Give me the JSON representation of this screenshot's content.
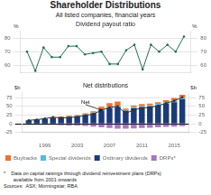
{
  "title": "Shareholder Distributions",
  "subtitle": "All listed companies, financial years",
  "annotations": [
    "*    Data on capital raisings through dividend reinvestment plans (DRPs)\n       available from 2001 onwards",
    "Sources:  ASX; Morningstar; RBA"
  ],
  "chart_data": [
    {
      "type": "line",
      "title": "Dividend payout ratio",
      "x": [
        1997,
        1998,
        1999,
        2000,
        2001,
        2002,
        2003,
        2004,
        2005,
        2006,
        2007,
        2008,
        2009,
        2010,
        2011,
        2012,
        2013,
        2014,
        2015,
        2016
      ],
      "values": [
        70,
        56,
        73,
        66,
        66,
        74,
        74,
        68,
        69,
        70,
        61,
        61,
        71,
        75,
        57,
        75,
        70,
        75,
        70,
        81
      ],
      "color": "#207050",
      "marker": "circle",
      "xlim": [
        1996.2,
        2016.8
      ],
      "ylim": [
        55,
        85
      ],
      "yticks": [
        60,
        70,
        80
      ],
      "y2lim": [
        55,
        85
      ],
      "y2ticks": [
        60,
        70,
        80
      ],
      "ylabel": "%",
      "y2label": "%",
      "grid": true,
      "tick_labels": "y"
    },
    {
      "type": "bar",
      "title": "Net distributions",
      "x": [
        1997,
        1998,
        1999,
        2000,
        2001,
        2002,
        2003,
        2004,
        2005,
        2006,
        2007,
        2008,
        2009,
        2010,
        2011,
        2012,
        2013,
        2014,
        2015,
        2016
      ],
      "series": [
        {
          "name": "Ordinary dividends",
          "color": "#1a3a7a",
          "values": [
            10,
            12,
            14,
            17,
            18,
            20,
            22,
            25,
            30,
            38,
            45,
            48,
            38,
            45,
            48,
            50,
            53,
            58,
            62,
            70
          ]
        },
        {
          "name": "Special dividends",
          "color": "#55bbdd",
          "values": [
            0,
            0,
            0,
            0,
            0,
            1,
            1,
            2,
            2,
            3,
            4,
            4,
            2,
            3,
            3,
            3,
            4,
            4,
            5,
            5
          ]
        },
        {
          "name": "Buybacks",
          "color": "#f07030",
          "values": [
            0,
            0,
            1,
            2,
            3,
            2,
            2,
            3,
            4,
            8,
            10,
            12,
            4,
            5,
            6,
            5,
            5,
            6,
            7,
            8
          ]
        },
        {
          "name": "DRPs*",
          "color": "#aa77bb",
          "values": [
            0,
            0,
            0,
            0,
            -4,
            -5,
            -5,
            -6,
            -8,
            -10,
            -12,
            -14,
            -14,
            -13,
            -12,
            -11,
            -10,
            -9,
            -8,
            -7
          ]
        },
        {
          "type": "line",
          "color": "#333333",
          "marker": "circle",
          "values": [
            10,
            12,
            15,
            19,
            17,
            18,
            20,
            24,
            28,
            39,
            47,
            50,
            30,
            40,
            45,
            47,
            52,
            59,
            66,
            76
          ]
        }
      ],
      "stacked": true,
      "xlim": [
        1996.2,
        2016.8
      ],
      "xticks": [
        1999,
        2003,
        2007,
        2011,
        2015
      ],
      "ylim": [
        -25,
        90
      ],
      "yticks": [
        -25,
        0,
        25,
        50,
        75
      ],
      "y2lim": [
        -25,
        90
      ],
      "y2ticks": [
        -25,
        0,
        25,
        50,
        75
      ],
      "ylabel": "$b",
      "y2label": "$b",
      "grid": true,
      "legend": "bottom",
      "annotations": [
        {
          "text": "Net",
          "xy": [
            2006,
            39
          ],
          "xytext": [
            2003.5,
            58
          ]
        }
      ]
    }
  ]
}
